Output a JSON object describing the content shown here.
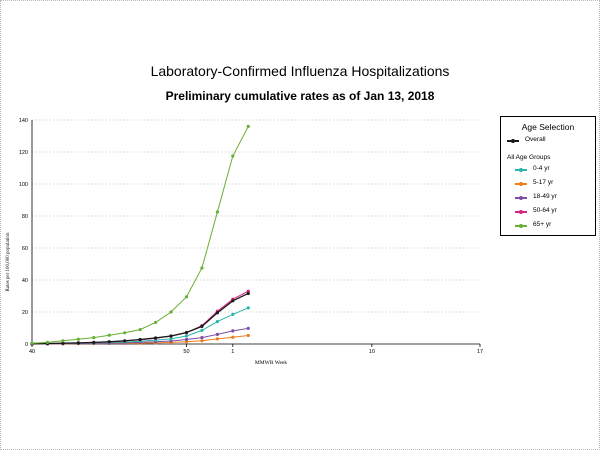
{
  "title": "Laboratory-Confirmed Influenza Hospitalizations",
  "subtitle": "Preliminary cumulative rates as of Jan 13, 2018",
  "legend": {
    "title": "Age Selection",
    "groups_label": "All Age Groups"
  },
  "colors": {
    "overall": "#1a1a1a",
    "0-4 yr": "#2bb5a8",
    "5-17 yr": "#f07d1c",
    "18-49 yr": "#7b4fa6",
    "50-64 yr": "#d8237f",
    "65+ yr": "#66b032",
    "grid": "#c8c8c8"
  },
  "chart_data": {
    "type": "line",
    "title": "Laboratory-Confirmed Influenza Hospitalizations",
    "subtitle": "Preliminary cumulative rates as of Jan 13, 2018",
    "xlabel": "MMWR Week",
    "ylabel": "Rates per 100,000 population",
    "ylim": [
      0,
      140
    ],
    "yticks": [
      0,
      20,
      40,
      60,
      80,
      100,
      120,
      140
    ],
    "x_axis": {
      "type": "category",
      "position_range": [
        0,
        23
      ],
      "tick_labels": [
        {
          "pos": 0,
          "label": "40"
        },
        {
          "pos": 10,
          "label": "50"
        },
        {
          "pos": 13,
          "label": "1"
        },
        {
          "pos": 22,
          "label": "10"
        },
        {
          "pos": 29,
          "label": "17"
        }
      ]
    },
    "x_weeks": [
      40,
      41,
      42,
      43,
      44,
      45,
      46,
      47,
      48,
      49,
      50,
      51,
      52,
      1,
      2
    ],
    "grid": true,
    "legend_position": "right",
    "series": [
      {
        "name": "Overall",
        "values": [
          0.1,
          0.3,
          0.5,
          0.7,
          1.0,
          1.4,
          2.0,
          2.8,
          3.8,
          5.0,
          7.2,
          11.0,
          19.5,
          27.0,
          31.6
        ]
      },
      {
        "name": "0-4 yr",
        "values": [
          0.1,
          0.2,
          0.3,
          0.5,
          0.7,
          0.9,
          1.2,
          1.7,
          2.4,
          3.2,
          5.0,
          8.5,
          14.0,
          18.5,
          22.6
        ]
      },
      {
        "name": "5-17 yr",
        "values": [
          0.0,
          0.1,
          0.1,
          0.2,
          0.2,
          0.3,
          0.4,
          0.5,
          0.7,
          1.0,
          1.4,
          2.0,
          3.2,
          4.2,
          5.3
        ]
      },
      {
        "name": "18-49 yr",
        "values": [
          0.0,
          0.1,
          0.2,
          0.3,
          0.4,
          0.5,
          0.7,
          1.0,
          1.4,
          1.9,
          2.8,
          4.0,
          6.0,
          8.2,
          9.8
        ]
      },
      {
        "name": "50-64 yr",
        "values": [
          0.1,
          0.2,
          0.4,
          0.6,
          0.9,
          1.3,
          1.9,
          2.6,
          3.6,
          4.9,
          7.0,
          11.5,
          20.5,
          28.0,
          33.0
        ]
      },
      {
        "name": "65+ yr",
        "values": [
          0.5,
          1.0,
          2.0,
          3.0,
          4.0,
          5.5,
          7.0,
          9.0,
          13.5,
          20.0,
          29.5,
          47.5,
          82.5,
          117.5,
          136.0
        ]
      }
    ]
  }
}
